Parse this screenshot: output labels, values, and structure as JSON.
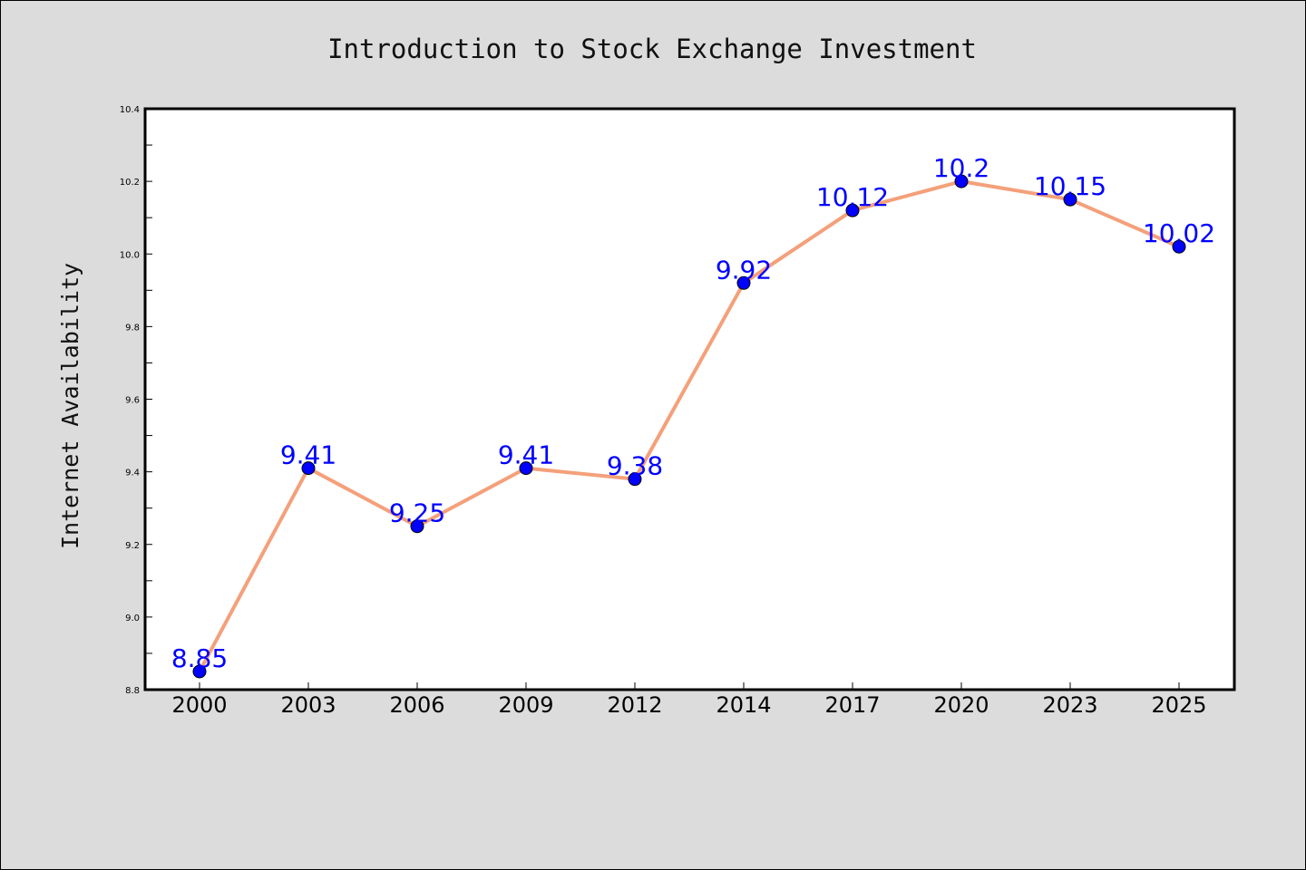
{
  "chart_data": {
    "type": "line",
    "title": "Introduction to Stock Exchange Investment",
    "xlabel": "",
    "ylabel": "Internet Availability",
    "categories": [
      "2000",
      "2003",
      "2006",
      "2009",
      "2012",
      "2014",
      "2017",
      "2020",
      "2023",
      "2025"
    ],
    "series": [
      {
        "values": [
          8.85,
          9.41,
          9.25,
          9.41,
          9.38,
          9.92,
          10.12,
          10.2,
          10.15,
          10.02
        ],
        "labels": [
          "8.85",
          "9.41",
          "9.25",
          "9.41",
          "9.38",
          "9.92",
          "10.12",
          "10.2",
          "10.15",
          "10.02"
        ],
        "line_color": "#f4a07a",
        "marker_color": "#0000ff",
        "label_color": "#0000ff"
      }
    ],
    "ylim": [
      8.8,
      10.4
    ],
    "yticks": [
      "8.8",
      "9.0",
      "9.2",
      "9.4",
      "9.6",
      "9.8",
      "10.0",
      "10.2",
      "10.4"
    ],
    "grid": false,
    "legend": "none",
    "colors": {
      "figure_background": "#dcdcdc",
      "plot_background": "#ffffff",
      "axes": "#000000"
    }
  }
}
